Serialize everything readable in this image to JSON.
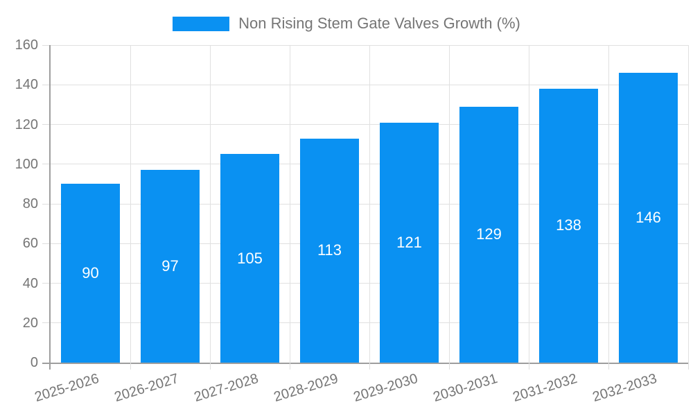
{
  "page": {
    "background": "#ffffff"
  },
  "chart_data": {
    "type": "bar",
    "title": "",
    "legend": {
      "position": "top",
      "label": "Non Rising Stem Gate Valves Growth (%)"
    },
    "categories": [
      "2025-2026",
      "2026-2027",
      "2027-2028",
      "2028-2029",
      "2029-2030",
      "2030-2031",
      "2031-2032",
      "2032-2033"
    ],
    "values": [
      90,
      97,
      105,
      113,
      121,
      129,
      138,
      146
    ],
    "xlabel": "",
    "ylabel": "",
    "ylim": [
      0,
      160
    ],
    "y_ticks": [
      0,
      20,
      40,
      60,
      80,
      100,
      120,
      140,
      160
    ],
    "grid": "on",
    "colors": {
      "bar": "#0a91f2",
      "value_label": "#ffffff",
      "axis": "#9e9e9e",
      "gridline": "#e0e0e0",
      "tick_mark": "#dedede",
      "tick_label": "#757575",
      "legend_text": "#757575"
    }
  }
}
